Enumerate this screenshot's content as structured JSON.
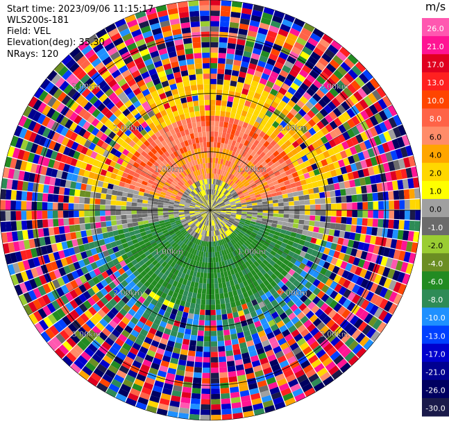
{
  "header": {
    "start_time": "Start time: 2023/09/06 11:15:17",
    "instrument": "WLS200s-181",
    "field": "Field: VEL",
    "elevation": "Elevation(deg): 35.30",
    "nrays": "NRays: 120"
  },
  "chart_data": {
    "type": "heatmap",
    "projection": "polar PPI",
    "field": "VEL",
    "units": "m/s",
    "rays": 120,
    "range_rings_km": [
      1.0,
      2.0,
      3.0
    ],
    "ring_labels": [
      "1.00km",
      "2.00km",
      "3.00km"
    ],
    "max_range_km": 3.6,
    "colorbar": {
      "label": "m/s",
      "ticks": [
        "26.0",
        "21.0",
        "17.0",
        "13.0",
        "10.0",
        "8.0",
        "6.0",
        "4.0",
        "2.0",
        "1.0",
        "0.0",
        "-1.0",
        "-2.0",
        "-4.0",
        "-6.0",
        "-8.0",
        "-10.0",
        "-13.0",
        "-17.0",
        "-21.0",
        "-26.0",
        "-30.0"
      ],
      "colors": [
        "#ff58b0",
        "#ff1493",
        "#e00020",
        "#ff2020",
        "#ff4500",
        "#ff6347",
        "#ff8c69",
        "#ffa500",
        "#ffd700",
        "#ffff00",
        "#a0a0a0",
        "#6b6b6b",
        "#9acd32",
        "#6b8e23",
        "#228b22",
        "#2e8b57",
        "#1e90ff",
        "#0040ff",
        "#0000cd",
        "#000090",
        "#000060",
        "#1a1a4a"
      ]
    },
    "regions": [
      {
        "range_km": [
          0.0,
          0.45
        ],
        "description_value": "near-zero",
        "value_range": [
          -1,
          1
        ]
      },
      {
        "range_km": [
          0.45,
          2.3
        ],
        "sector": "north",
        "value_range": [
          4,
          10
        ]
      },
      {
        "range_km": [
          0.45,
          2.3
        ],
        "sector": "south",
        "value_range": [
          -8,
          -4
        ]
      },
      {
        "range_km": [
          2.3,
          3.6
        ],
        "sector": "all",
        "value_range": [
          -30,
          26
        ],
        "noise": true
      }
    ]
  }
}
